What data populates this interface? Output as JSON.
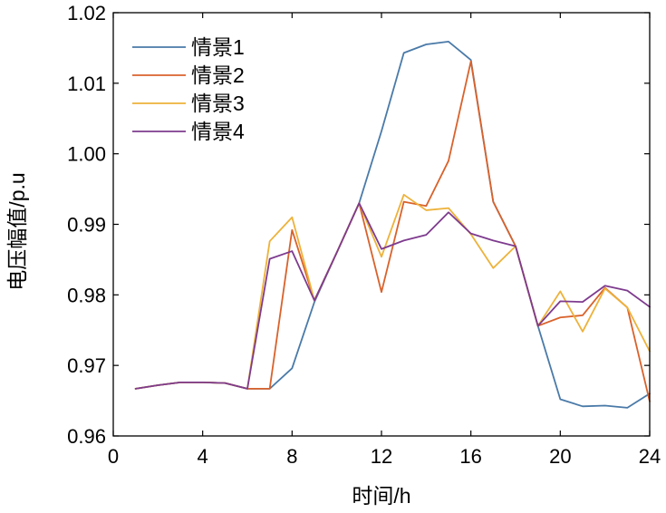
{
  "chart_data": {
    "type": "line",
    "title": "",
    "xlabel": "时间/h",
    "ylabel": "电压幅值/p.u",
    "xlim": [
      0,
      24
    ],
    "ylim": [
      0.96,
      1.02
    ],
    "xticks": [
      0,
      4,
      8,
      12,
      16,
      20,
      24
    ],
    "yticks": [
      0.96,
      0.97,
      0.98,
      0.99,
      1.0,
      1.01,
      1.02
    ],
    "ytick_labels": [
      "0.96",
      "0.97",
      "0.98",
      "0.99",
      "1.00",
      "1.01",
      "1.02"
    ],
    "grid": false,
    "legend_position": "top-left",
    "x": [
      1,
      2,
      3,
      4,
      5,
      6,
      7,
      8,
      9,
      10,
      11,
      12,
      13,
      14,
      15,
      16,
      17,
      18,
      19,
      20,
      21,
      22,
      23,
      24
    ],
    "series": [
      {
        "name": "情景1",
        "color": "#4a7aa8",
        "values": [
          0.9667,
          0.9672,
          0.9676,
          0.9676,
          0.9675,
          0.9667,
          0.9667,
          0.9696,
          0.979,
          0.986,
          0.993,
          1.0032,
          1.0143,
          1.0155,
          1.0159,
          1.0133,
          0.9932,
          0.9869,
          0.9756,
          0.9652,
          0.9642,
          0.9643,
          0.964,
          0.966
        ]
      },
      {
        "name": "情景2",
        "color": "#d9622b",
        "values": [
          0.9667,
          0.9672,
          0.9676,
          0.9676,
          0.9675,
          0.9667,
          0.9667,
          0.9892,
          0.9792,
          0.986,
          0.993,
          0.9804,
          0.9932,
          0.9926,
          0.999,
          1.0131,
          0.9932,
          0.9869,
          0.9756,
          0.9768,
          0.9771,
          0.981,
          0.9782,
          0.9649
        ]
      },
      {
        "name": "情景3",
        "color": "#edb23a",
        "values": [
          0.9667,
          0.9672,
          0.9676,
          0.9676,
          0.9675,
          0.9667,
          0.9876,
          0.991,
          0.9792,
          0.986,
          0.993,
          0.9854,
          0.9942,
          0.992,
          0.9923,
          0.9886,
          0.9838,
          0.9869,
          0.9756,
          0.9805,
          0.9748,
          0.9809,
          0.9782,
          0.972
        ]
      },
      {
        "name": "情景4",
        "color": "#7e3b8e",
        "values": [
          0.9667,
          0.9672,
          0.9676,
          0.9676,
          0.9675,
          0.9667,
          0.9851,
          0.9862,
          0.9792,
          0.986,
          0.993,
          0.9865,
          0.9877,
          0.9885,
          0.9917,
          0.9887,
          0.9877,
          0.9869,
          0.9756,
          0.9791,
          0.979,
          0.9813,
          0.9806,
          0.9783
        ]
      }
    ]
  }
}
